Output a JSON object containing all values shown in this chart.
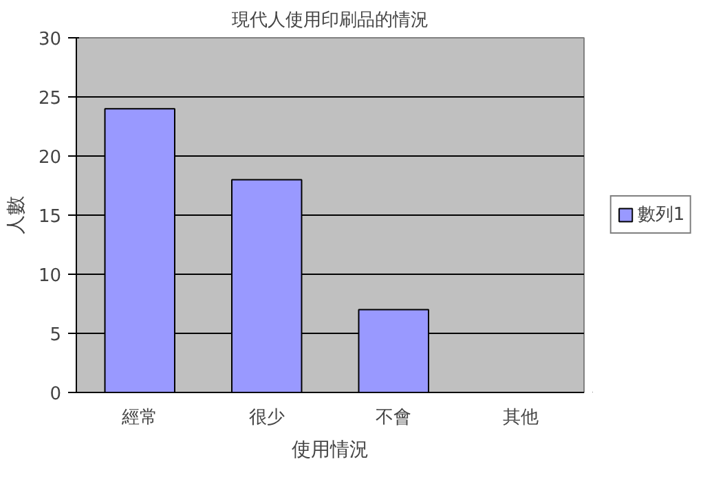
{
  "chart_data": {
    "type": "bar",
    "title": "現代人使用印刷品的情況",
    "xlabel": "使用情況",
    "ylabel": "人數",
    "categories": [
      "經常",
      "很少",
      "不會",
      "其他"
    ],
    "series": [
      {
        "name": "數列1",
        "color": "#9999ff",
        "values": [
          24,
          18,
          7,
          null
        ]
      }
    ],
    "ylim": [
      0,
      30
    ],
    "yticks": [
      0,
      5,
      10,
      15,
      20,
      25,
      30
    ],
    "grid": "y",
    "legend": "right"
  }
}
